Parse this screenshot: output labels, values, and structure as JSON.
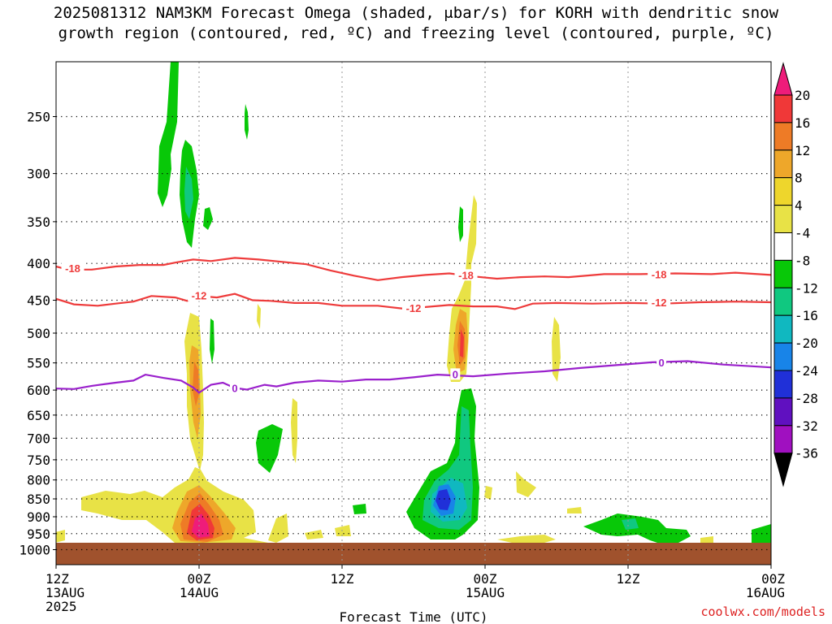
{
  "title_line1": "2025081312 NAM3KM Forecast Omega (shaded, μbar/s) for KORH with dendritic snow",
  "title_line2": "growth region (contoured, red, ºC) and freezing level (contoured, purple, ºC)",
  "watermark": "coolwx.com/models",
  "colors": {
    "dgz": "#ee3b3b",
    "freezing": "#9a20cc",
    "ground": "#a0522d",
    "grid": "#000000"
  },
  "chart_data": {
    "type": "heatmap",
    "xlabel": "Forecast Time (UTC)",
    "ylabel": "",
    "x_hours_range": [
      0,
      60
    ],
    "y_pressure_range": [
      200,
      1000
    ],
    "y_ticks": [
      250,
      300,
      350,
      400,
      450,
      500,
      550,
      600,
      650,
      700,
      750,
      800,
      850,
      900,
      950,
      1000
    ],
    "x_ticks": [
      {
        "hour": 0,
        "lines": [
          "12Z",
          "13AUG",
          "2025"
        ]
      },
      {
        "hour": 12,
        "lines": [
          "00Z",
          "14AUG"
        ]
      },
      {
        "hour": 24,
        "lines": [
          "12Z"
        ]
      },
      {
        "hour": 36,
        "lines": [
          "00Z",
          "15AUG"
        ]
      },
      {
        "hour": 48,
        "lines": [
          "12Z"
        ]
      },
      {
        "hour": 60,
        "lines": [
          "00Z",
          "16AUG"
        ]
      }
    ],
    "colorbar": {
      "levels": [
        20,
        16,
        12,
        8,
        4,
        -4,
        -8,
        -12,
        -16,
        -20,
        -24,
        -28,
        -32,
        -36
      ],
      "colors": [
        "#ee1c7a",
        "#f03838",
        "#ee7b26",
        "#eea72a",
        "#eed62c",
        "#e8e246",
        "#ffffff",
        "#08c808",
        "#10c880",
        "#10b8c0",
        "#1884e8",
        "#2030d8",
        "#6010c0",
        "#a010c0",
        "#a0a0a0",
        "#000000"
      ]
    },
    "dgz_contours": [
      {
        "level": -18,
        "label": "-18",
        "points": [
          [
            0,
            404
          ],
          [
            1,
            408
          ],
          [
            3,
            408
          ],
          [
            5,
            404
          ],
          [
            7,
            402
          ],
          [
            9,
            402
          ],
          [
            10,
            399
          ],
          [
            11.5,
            395
          ],
          [
            13,
            397
          ],
          [
            15,
            393
          ],
          [
            17,
            395
          ],
          [
            19,
            398
          ],
          [
            21,
            401
          ],
          [
            23,
            409
          ],
          [
            25,
            416
          ],
          [
            27,
            422
          ],
          [
            29,
            418
          ],
          [
            31,
            415
          ],
          [
            33,
            413
          ],
          [
            35,
            417
          ],
          [
            37,
            420
          ],
          [
            39,
            418
          ],
          [
            41,
            417
          ],
          [
            43,
            418
          ],
          [
            46,
            414
          ],
          [
            49,
            414
          ],
          [
            52,
            413
          ],
          [
            55,
            414
          ],
          [
            57,
            412
          ],
          [
            60,
            415
          ]
        ],
        "labels_at": [
          [
            1.4,
            406
          ],
          [
            34.4,
            415
          ],
          [
            50.6,
            414
          ]
        ]
      },
      {
        "level": -12,
        "label": "-12",
        "points": [
          [
            0,
            448
          ],
          [
            1.5,
            456
          ],
          [
            3.5,
            458
          ],
          [
            5,
            455
          ],
          [
            6.5,
            452
          ],
          [
            8,
            444
          ],
          [
            10,
            446
          ],
          [
            11,
            451
          ],
          [
            12,
            444
          ],
          [
            13.5,
            446
          ],
          [
            15,
            441
          ],
          [
            16.5,
            450
          ],
          [
            18,
            451
          ],
          [
            20,
            454
          ],
          [
            22,
            454
          ],
          [
            24,
            458
          ],
          [
            27,
            458
          ],
          [
            29,
            462
          ],
          [
            31,
            460
          ],
          [
            33,
            457
          ],
          [
            35,
            459
          ],
          [
            37,
            459
          ],
          [
            38.5,
            463
          ],
          [
            40,
            455
          ],
          [
            42,
            454
          ],
          [
            45,
            455
          ],
          [
            48,
            454
          ],
          [
            51,
            455
          ],
          [
            54,
            453
          ],
          [
            57,
            452
          ],
          [
            60,
            453
          ]
        ],
        "labels_at": [
          [
            12,
            443
          ],
          [
            30,
            461
          ],
          [
            50.6,
            453
          ]
        ]
      },
      {
        "level": 0,
        "label": "0",
        "points": [
          [
            0,
            597
          ],
          [
            1.5,
            598
          ],
          [
            3,
            592
          ],
          [
            5,
            586
          ],
          [
            6.5,
            582
          ],
          [
            7.5,
            571
          ],
          [
            9,
            577
          ],
          [
            10.5,
            582
          ],
          [
            11.5,
            595
          ],
          [
            12,
            605
          ],
          [
            13,
            590
          ],
          [
            14,
            586
          ],
          [
            15,
            596
          ],
          [
            16,
            599
          ],
          [
            17.5,
            590
          ],
          [
            18.5,
            593
          ],
          [
            20,
            586
          ],
          [
            22,
            582
          ],
          [
            24,
            584
          ],
          [
            26,
            580
          ],
          [
            28,
            580
          ],
          [
            30,
            576
          ],
          [
            32,
            571
          ],
          [
            35,
            574
          ],
          [
            38,
            569
          ],
          [
            41,
            565
          ],
          [
            44,
            559
          ],
          [
            47,
            554
          ],
          [
            50,
            549
          ],
          [
            53,
            547
          ],
          [
            56,
            553
          ],
          [
            60,
            558
          ]
        ],
        "labels_at": [
          [
            15,
            596
          ],
          [
            33.5,
            570
          ],
          [
            50.8,
            549
          ]
        ]
      }
    ]
  }
}
